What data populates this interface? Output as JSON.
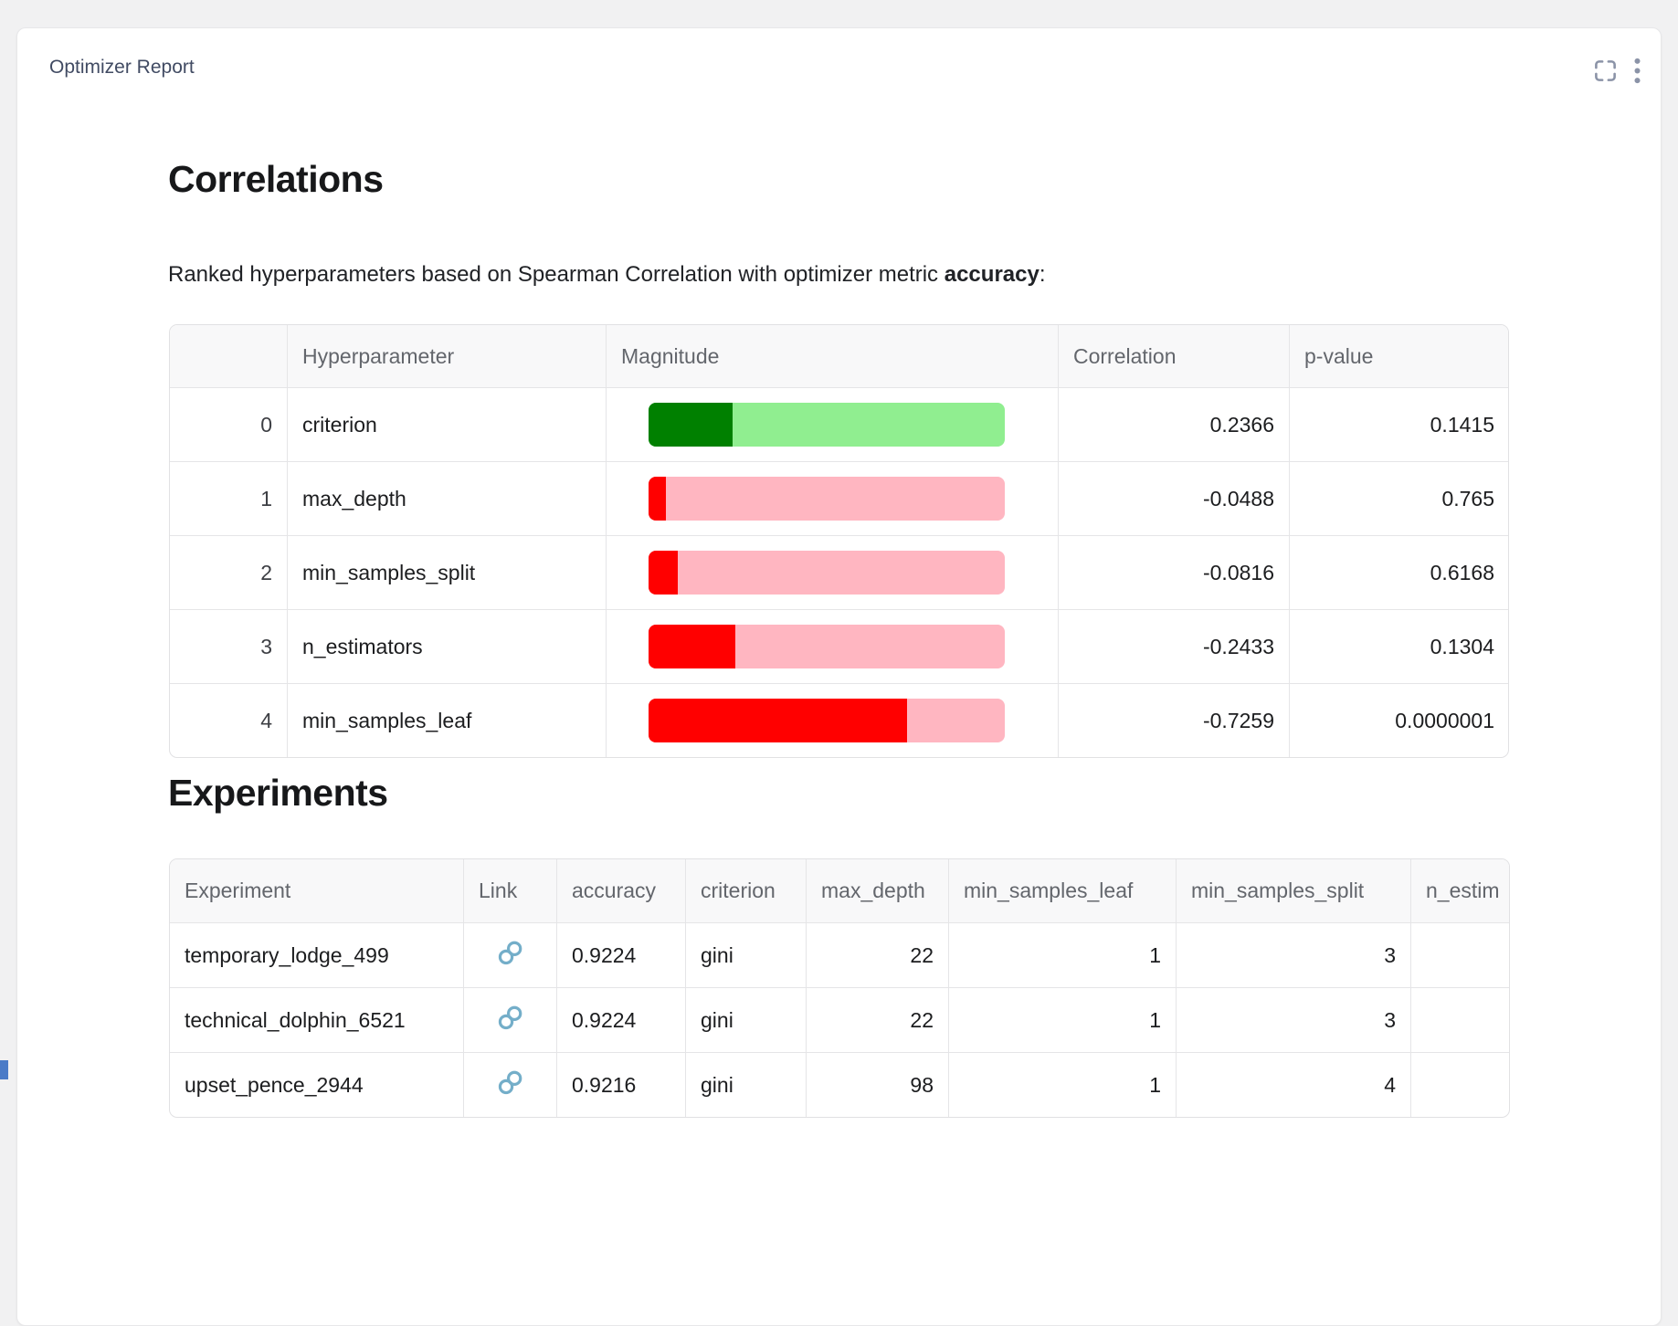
{
  "panel": {
    "title": "Optimizer Report"
  },
  "icons": {
    "fullscreen": "fullscreen-expand-brackets",
    "menu": "vertical-ellipsis",
    "link": "chain-link"
  },
  "colors": {
    "panel_title": "#414b63",
    "header_icons": "#8b93a7",
    "link_icon": "#74aec9",
    "positive_bar_fill": "#008000",
    "positive_bar_bg": "#90EE90",
    "negative_bar_fill": "#FF0000",
    "negative_bar_bg": "#FFB6C1",
    "bottom_left_accent": "#4b7bc7"
  },
  "correlations": {
    "title": "Correlations",
    "subtitle_prefix": "Ranked hyperparameters based on Spearman Correlation with optimizer metric ",
    "subtitle_bold": "accuracy",
    "subtitle_suffix": ":",
    "columns": {
      "index": "",
      "hyperparameter": "Hyperparameter",
      "magnitude": "Magnitude",
      "correlation": "Correlation",
      "p_value": "p-value"
    },
    "rows": [
      {
        "index": "0",
        "hyperparameter": "criterion",
        "magnitude_pct": 23.66,
        "bar_fill": "#008000",
        "bar_bg": "#90EE90",
        "correlation": "0.2366",
        "p_value": "0.1415"
      },
      {
        "index": "1",
        "hyperparameter": "max_depth",
        "magnitude_pct": 4.88,
        "bar_fill": "#FF0000",
        "bar_bg": "#FFB6C1",
        "correlation": "-0.0488",
        "p_value": "0.765"
      },
      {
        "index": "2",
        "hyperparameter": "min_samples_split",
        "magnitude_pct": 8.16,
        "bar_fill": "#FF0000",
        "bar_bg": "#FFB6C1",
        "correlation": "-0.0816",
        "p_value": "0.6168"
      },
      {
        "index": "3",
        "hyperparameter": "n_estimators",
        "magnitude_pct": 24.33,
        "bar_fill": "#FF0000",
        "bar_bg": "#FFB6C1",
        "correlation": "-0.2433",
        "p_value": "0.1304"
      },
      {
        "index": "4",
        "hyperparameter": "min_samples_leaf",
        "magnitude_pct": 72.59,
        "bar_fill": "#FF0000",
        "bar_bg": "#FFB6C1",
        "correlation": "-0.7259",
        "p_value": "0.0000001"
      }
    ]
  },
  "experiments": {
    "title": "Experiments",
    "columns": [
      "Experiment",
      "Link",
      "accuracy",
      "criterion",
      "max_depth",
      "min_samples_leaf",
      "min_samples_split",
      "n_estim"
    ],
    "rows": [
      {
        "experiment": "temporary_lodge_499",
        "accuracy": "0.9224",
        "criterion": "gini",
        "max_depth": "22",
        "min_samples_leaf": "1",
        "min_samples_split": "3",
        "n_estimators": ""
      },
      {
        "experiment": "technical_dolphin_6521",
        "accuracy": "0.9224",
        "criterion": "gini",
        "max_depth": "22",
        "min_samples_leaf": "1",
        "min_samples_split": "3",
        "n_estimators": ""
      },
      {
        "experiment": "upset_pence_2944",
        "accuracy": "0.9216",
        "criterion": "gini",
        "max_depth": "98",
        "min_samples_leaf": "1",
        "min_samples_split": "4",
        "n_estimators": ""
      }
    ]
  }
}
